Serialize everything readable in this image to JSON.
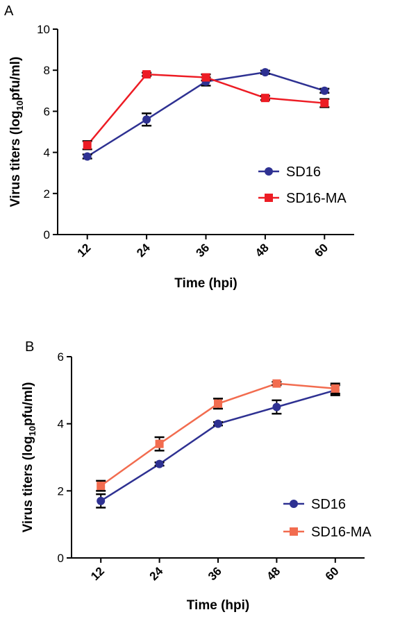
{
  "chart_data": [
    {
      "type": "line",
      "panel_label": "A",
      "xlabel": "Time (hpi)",
      "ylabel": "Virus titers (log",
      "ylabel_sub": "10",
      "ylabel_tail": "pfu/ml)",
      "categories": [
        "12",
        "24",
        "36",
        "48",
        "60"
      ],
      "yticks": [
        "0",
        "2",
        "4",
        "6",
        "8",
        "10"
      ],
      "ylim": [
        0,
        10
      ],
      "grid": false,
      "legend_position": "right",
      "series": [
        {
          "name": "SD16",
          "color": "#2e3192",
          "marker": "circle",
          "values": [
            3.8,
            5.6,
            7.45,
            7.9,
            7.0
          ],
          "errors": [
            0.1,
            0.3,
            0.2,
            0.08,
            0.1
          ]
        },
        {
          "name": "SD16-MA",
          "color": "#ed1c24",
          "marker": "square",
          "values": [
            4.35,
            7.8,
            7.65,
            6.65,
            6.4
          ],
          "errors": [
            0.2,
            0.08,
            0.15,
            0.1,
            0.2
          ]
        }
      ]
    },
    {
      "type": "line",
      "panel_label": "B",
      "xlabel": "Time (hpi)",
      "ylabel": "Virus titers (log",
      "ylabel_sub": "10",
      "ylabel_tail": "pfu/ml)",
      "categories": [
        "12",
        "24",
        "36",
        "48",
        "60"
      ],
      "yticks": [
        "0",
        "2",
        "4",
        "6"
      ],
      "ylim": [
        0,
        6
      ],
      "grid": false,
      "legend_position": "bottom-right",
      "series": [
        {
          "name": "SD16",
          "color": "#2e3192",
          "marker": "circle",
          "values": [
            1.7,
            2.8,
            4.0,
            4.5,
            5.0
          ],
          "errors": [
            0.2,
            0.05,
            0.05,
            0.2,
            0.15
          ]
        },
        {
          "name": "SD16-MA",
          "color": "#f26c4f",
          "marker": "square",
          "values": [
            2.15,
            3.4,
            4.6,
            5.2,
            5.05
          ],
          "errors": [
            0.15,
            0.2,
            0.15,
            0.05,
            0.15
          ]
        }
      ]
    }
  ]
}
